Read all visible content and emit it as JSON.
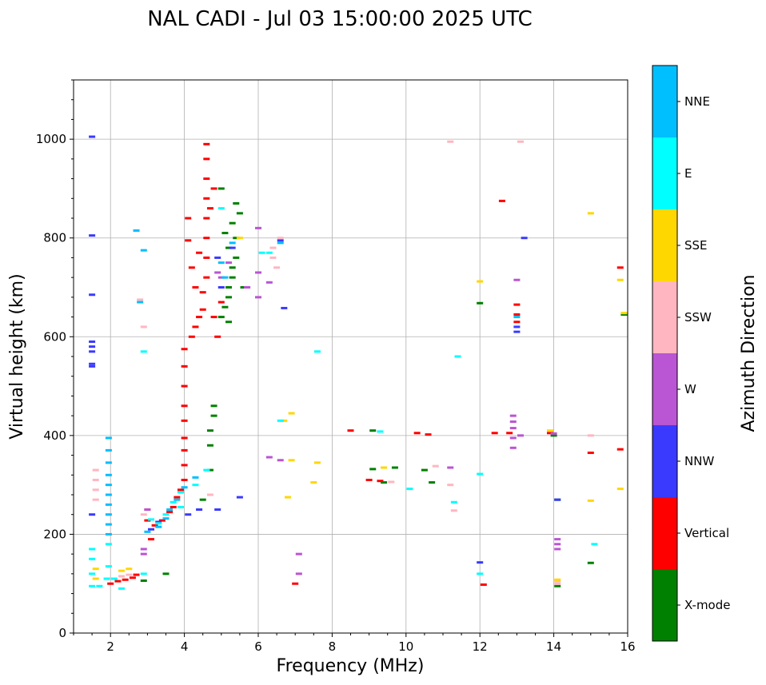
{
  "chart_data": {
    "type": "scatter",
    "title": "NAL CADI - Jul 03 15:00:00 2025 UTC",
    "xlabel": "Frequency (MHz)",
    "ylabel": "Virtual height (km)",
    "xlim": [
      1,
      16
    ],
    "ylim": [
      0,
      1120
    ],
    "xticks": [
      2,
      4,
      6,
      8,
      10,
      12,
      14,
      16
    ],
    "yticks": [
      0,
      200,
      400,
      600,
      800,
      1000
    ],
    "grid": true,
    "colorbar": {
      "label": "Azimuth Direction",
      "categories": [
        {
          "name": "NNE",
          "color": "#00bfff"
        },
        {
          "name": "E",
          "color": "#00ffff"
        },
        {
          "name": "SSE",
          "color": "#ffd700"
        },
        {
          "name": "SSW",
          "color": "#ffb6c1"
        },
        {
          "name": "W",
          "color": "#ba55d3"
        },
        {
          "name": "NNW",
          "color": "#3a3aff"
        },
        {
          "name": "Vertical",
          "color": "#ff0000"
        },
        {
          "name": "X-mode",
          "color": "#008000"
        }
      ]
    },
    "series": [
      {
        "name": "Vertical",
        "points": [
          [
            2.0,
            100
          ],
          [
            2.2,
            105
          ],
          [
            2.4,
            108
          ],
          [
            2.6,
            112
          ],
          [
            2.7,
            118
          ],
          [
            3.0,
            250
          ],
          [
            3.0,
            228
          ],
          [
            3.2,
            218
          ],
          [
            3.4,
            228
          ],
          [
            3.6,
            245
          ],
          [
            3.7,
            255
          ],
          [
            3.8,
            275
          ],
          [
            3.9,
            290
          ],
          [
            4.0,
            310
          ],
          [
            4.0,
            340
          ],
          [
            4.0,
            370
          ],
          [
            4.0,
            395
          ],
          [
            4.0,
            430
          ],
          [
            4.0,
            460
          ],
          [
            4.0,
            500
          ],
          [
            4.0,
            540
          ],
          [
            4.0,
            575
          ],
          [
            4.2,
            600
          ],
          [
            4.3,
            620
          ],
          [
            4.4,
            640
          ],
          [
            4.5,
            655
          ],
          [
            4.5,
            690
          ],
          [
            4.6,
            720
          ],
          [
            4.6,
            760
          ],
          [
            4.6,
            800
          ],
          [
            4.6,
            840
          ],
          [
            4.6,
            880
          ],
          [
            4.6,
            920
          ],
          [
            4.6,
            960
          ],
          [
            4.6,
            990
          ],
          [
            4.1,
            795
          ],
          [
            4.1,
            840
          ],
          [
            4.2,
            740
          ],
          [
            4.3,
            700
          ],
          [
            4.4,
            770
          ],
          [
            4.8,
            640
          ],
          [
            4.9,
            600
          ],
          [
            5.0,
            670
          ],
          [
            4.8,
            900
          ],
          [
            4.7,
            860
          ],
          [
            8.5,
            410
          ],
          [
            9.0,
            310
          ],
          [
            9.3,
            308
          ],
          [
            10.3,
            405
          ],
          [
            10.6,
            402
          ],
          [
            12.1,
            98
          ],
          [
            12.6,
            875
          ],
          [
            12.4,
            405
          ],
          [
            12.8,
            405
          ],
          [
            13.0,
            665
          ],
          [
            13.0,
            645
          ],
          [
            13.0,
            630
          ],
          [
            13.9,
            405
          ],
          [
            15.0,
            365
          ],
          [
            15.8,
            740
          ],
          [
            15.8,
            372
          ],
          [
            7.0,
            100
          ],
          [
            3.1,
            190
          ]
        ]
      },
      {
        "name": "X-mode",
        "points": [
          [
            2.9,
            106
          ],
          [
            3.5,
            120
          ],
          [
            4.5,
            270
          ],
          [
            4.7,
            330
          ],
          [
            4.7,
            380
          ],
          [
            4.7,
            410
          ],
          [
            4.8,
            440
          ],
          [
            4.8,
            460
          ],
          [
            5.0,
            640
          ],
          [
            5.1,
            660
          ],
          [
            5.2,
            680
          ],
          [
            5.2,
            700
          ],
          [
            5.3,
            720
          ],
          [
            5.3,
            740
          ],
          [
            5.4,
            760
          ],
          [
            5.2,
            780
          ],
          [
            5.4,
            800
          ],
          [
            5.3,
            830
          ],
          [
            5.5,
            850
          ],
          [
            5.4,
            870
          ],
          [
            5.0,
            900
          ],
          [
            5.2,
            630
          ],
          [
            5.6,
            700
          ],
          [
            5.1,
            810
          ],
          [
            9.1,
            410
          ],
          [
            9.1,
            332
          ],
          [
            9.4,
            305
          ],
          [
            9.7,
            335
          ],
          [
            10.5,
            330
          ],
          [
            10.7,
            305
          ],
          [
            12.0,
            668
          ],
          [
            14.1,
            95
          ],
          [
            14.1,
            270
          ],
          [
            15.0,
            142
          ],
          [
            15.9,
            645
          ],
          [
            14.0,
            400
          ]
        ]
      },
      {
        "name": "NNW",
        "points": [
          [
            1.5,
            1005
          ],
          [
            1.5,
            805
          ],
          [
            1.5,
            685
          ],
          [
            1.5,
            590
          ],
          [
            1.5,
            580
          ],
          [
            1.5,
            570
          ],
          [
            1.5,
            545
          ],
          [
            1.5,
            540
          ],
          [
            1.5,
            240
          ],
          [
            3.1,
            210
          ],
          [
            3.3,
            225
          ],
          [
            4.1,
            240
          ],
          [
            4.4,
            250
          ],
          [
            4.9,
            250
          ],
          [
            5.0,
            700
          ],
          [
            4.9,
            760
          ],
          [
            5.3,
            780
          ],
          [
            5.5,
            275
          ],
          [
            6.7,
            658
          ],
          [
            12.0,
            143
          ],
          [
            13.0,
            620
          ],
          [
            13.0,
            610
          ],
          [
            13.2,
            800
          ],
          [
            14.1,
            270
          ],
          [
            6.6,
            795
          ]
        ]
      },
      {
        "name": "W",
        "points": [
          [
            2.9,
            160
          ],
          [
            2.9,
            170
          ],
          [
            3.0,
            250
          ],
          [
            4.9,
            730
          ],
          [
            5.0,
            720
          ],
          [
            5.2,
            750
          ],
          [
            5.7,
            700
          ],
          [
            6.0,
            730
          ],
          [
            6.0,
            680
          ],
          [
            6.3,
            710
          ],
          [
            6.0,
            820
          ],
          [
            6.3,
            356
          ],
          [
            6.6,
            350
          ],
          [
            7.1,
            160
          ],
          [
            7.1,
            120
          ],
          [
            11.2,
            335
          ],
          [
            12.9,
            440
          ],
          [
            12.9,
            428
          ],
          [
            12.9,
            415
          ],
          [
            12.9,
            395
          ],
          [
            12.9,
            375
          ],
          [
            13.0,
            715
          ],
          [
            13.1,
            400
          ],
          [
            14.1,
            190
          ],
          [
            14.1,
            180
          ],
          [
            14.1,
            170
          ],
          [
            14.0,
            404
          ]
        ]
      },
      {
        "name": "SSW",
        "points": [
          [
            1.6,
            330
          ],
          [
            1.6,
            310
          ],
          [
            1.6,
            290
          ],
          [
            1.6,
            270
          ],
          [
            2.3,
            115
          ],
          [
            2.5,
            118
          ],
          [
            2.9,
            240
          ],
          [
            4.7,
            280
          ],
          [
            6.4,
            780
          ],
          [
            6.4,
            760
          ],
          [
            6.5,
            740
          ],
          [
            6.6,
            800
          ],
          [
            9.6,
            306
          ],
          [
            10.8,
            338
          ],
          [
            11.2,
            300
          ],
          [
            11.3,
            248
          ],
          [
            11.2,
            995
          ],
          [
            13.1,
            995
          ],
          [
            14.1,
            105
          ],
          [
            14.1,
            100
          ],
          [
            15.0,
            400
          ],
          [
            2.8,
            675
          ],
          [
            2.9,
            620
          ]
        ]
      },
      {
        "name": "SSE",
        "points": [
          [
            1.6,
            130
          ],
          [
            1.6,
            110
          ],
          [
            2.3,
            126
          ],
          [
            2.5,
            130
          ],
          [
            5.5,
            800
          ],
          [
            6.8,
            275
          ],
          [
            6.9,
            350
          ],
          [
            6.9,
            445
          ],
          [
            6.7,
            430
          ],
          [
            7.5,
            305
          ],
          [
            7.6,
            345
          ],
          [
            9.4,
            335
          ],
          [
            12.0,
            712
          ],
          [
            13.9,
            410
          ],
          [
            15.0,
            850
          ],
          [
            15.0,
            268
          ],
          [
            15.8,
            715
          ],
          [
            15.8,
            292
          ],
          [
            15.9,
            648
          ],
          [
            14.1,
            108
          ]
        ]
      },
      {
        "name": "E",
        "points": [
          [
            1.5,
            170
          ],
          [
            1.5,
            150
          ],
          [
            1.5,
            120
          ],
          [
            1.5,
            95
          ],
          [
            1.7,
            95
          ],
          [
            1.9,
            110
          ],
          [
            1.95,
            135
          ],
          [
            1.95,
            180
          ],
          [
            2.1,
            110
          ],
          [
            2.3,
            90
          ],
          [
            2.9,
            120
          ],
          [
            3.1,
            230
          ],
          [
            3.3,
            222
          ],
          [
            3.5,
            240
          ],
          [
            3.7,
            265
          ],
          [
            3.9,
            285
          ],
          [
            4.3,
            300
          ],
          [
            4.6,
            330
          ],
          [
            6.1,
            770
          ],
          [
            6.6,
            430
          ],
          [
            6.3,
            770
          ],
          [
            7.6,
            570
          ],
          [
            9.3,
            408
          ],
          [
            10.1,
            292
          ],
          [
            11.3,
            265
          ],
          [
            11.4,
            560
          ],
          [
            12.0,
            120
          ],
          [
            12.0,
            322
          ],
          [
            15.1,
            180
          ],
          [
            5.0,
            860
          ],
          [
            2.9,
            570
          ],
          [
            3.9,
            255
          ]
        ]
      },
      {
        "name": "NNE",
        "points": [
          [
            1.95,
            395
          ],
          [
            1.95,
            370
          ],
          [
            1.95,
            345
          ],
          [
            1.95,
            320
          ],
          [
            1.95,
            300
          ],
          [
            1.95,
            280
          ],
          [
            1.95,
            260
          ],
          [
            1.95,
            240
          ],
          [
            1.95,
            220
          ],
          [
            1.95,
            200
          ],
          [
            2.7,
            815
          ],
          [
            2.8,
            670
          ],
          [
            2.9,
            775
          ],
          [
            3.0,
            205
          ],
          [
            3.3,
            215
          ],
          [
            3.5,
            232
          ],
          [
            3.6,
            250
          ],
          [
            3.8,
            270
          ],
          [
            4.0,
            295
          ],
          [
            4.3,
            315
          ],
          [
            5.0,
            750
          ],
          [
            5.1,
            720
          ],
          [
            5.3,
            790
          ],
          [
            6.6,
            790
          ],
          [
            13.0,
            640
          ]
        ]
      }
    ]
  }
}
